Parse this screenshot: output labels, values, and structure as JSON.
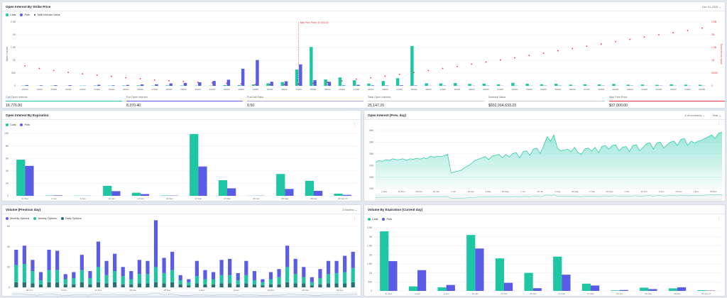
{
  "colors": {
    "calls": "#1fc6a3",
    "puts": "#5b5ce6",
    "total": "#e8353b",
    "monthly": "#5b5ce6",
    "weekly": "#1fc6a3",
    "daily": "#2b6f73",
    "area": "#1fc6a3"
  },
  "strike": {
    "title": "Open Interest By Strike Price",
    "date": "Dec 31 2025",
    "legend": {
      "calls": "Calls",
      "puts": "Puts",
      "total": "Total Intrinsic Value"
    },
    "y_left_label": "Open Interest",
    "y_right_label": "Total Intrinsic Value",
    "max_pain_label": "Max Pain Price: 37,000.00",
    "stats": [
      {
        "label": "Call Open Interest",
        "value": "16,776.80",
        "color": "#1fc6a3"
      },
      {
        "label": "Put Open Interest",
        "value": "8,370.40",
        "color": "#5b5ce6"
      },
      {
        "label": "Put/Call Ratio",
        "value": "0.50",
        "color": "#a7a8e8"
      },
      {
        "label": "Total Open Interest",
        "value": "25,147.20",
        "color": "#c7ccd6"
      },
      {
        "label": "Notional Value",
        "value": "$932,914,633.23",
        "color": "#c7ccd6"
      },
      {
        "label": "Max Pain Price",
        "value": "$37,000.00",
        "color": "#e8353b"
      }
    ]
  },
  "expiration": {
    "title": "Open Interest By Expiration",
    "legend": {
      "calls": "Calls",
      "puts": "Puts"
    }
  },
  "prevday": {
    "title": "Open Interest (Prev. day)",
    "range": "# of contracts",
    "period": "Year"
  },
  "volume_prev": {
    "title": "Volume (Previous day)",
    "range": "3 Months",
    "legend": {
      "monthly": "Monthly Options",
      "weekly": "Weekly Options",
      "daily": "Daily Options"
    }
  },
  "volume_exp": {
    "title": "Volume By Expiration (Current day)",
    "legend": {
      "calls": "Calls",
      "puts": "Puts"
    }
  },
  "chart_data": [
    {
      "type": "bar",
      "title": "Open Interest By Strike Price",
      "ylabel": "Open Interest",
      "yticks": [
        "2.5K",
        "2K",
        "1.5K",
        "1K",
        "500",
        "0"
      ],
      "ylim": [
        0,
        2500
      ],
      "y2label": "Total Intrinsic Value",
      "y2ticks": [
        "2.5B",
        "2B",
        "1.5B",
        "1B",
        "500M",
        "0"
      ],
      "y2lim": [
        0,
        2.5
      ],
      "categories": [
        "18000",
        "19000",
        "20000",
        "21000",
        "22000",
        "23000",
        "24000",
        "25000",
        "26000",
        "27000",
        "28000",
        "29000",
        "30000",
        "31000",
        "32000",
        "33000",
        "34000",
        "35000",
        "36000",
        "37000",
        "38000",
        "39000",
        "40000",
        "41000",
        "42000",
        "43000",
        "44000",
        "45000",
        "46000",
        "47000",
        "48000",
        "49000",
        "50000",
        "51000",
        "52000",
        "53000",
        "54000",
        "55000",
        "56000",
        "57000",
        "58000",
        "59000",
        "60000",
        "61000",
        "62000",
        "63000",
        "64000",
        "65000"
      ],
      "series": [
        {
          "name": "Calls",
          "values": [
            10,
            5,
            10,
            5,
            10,
            15,
            10,
            15,
            20,
            10,
            20,
            15,
            10,
            10,
            30,
            30,
            55,
            100,
            150,
            640,
            1520,
            250,
            330,
            220,
            90,
            190,
            300,
            1560,
            100,
            95,
            110,
            75,
            85,
            60,
            120,
            80,
            60,
            80,
            45,
            60,
            55,
            75,
            45,
            50,
            40,
            60,
            45,
            40
          ]
        },
        {
          "name": "Puts",
          "values": [
            30,
            20,
            25,
            25,
            10,
            40,
            20,
            35,
            55,
            60,
            95,
            115,
            140,
            190,
            240,
            670,
            1010,
            160,
            180,
            840,
            220,
            160,
            20,
            40,
            20,
            15,
            25,
            15,
            5,
            10,
            5,
            5,
            10,
            5,
            5,
            5,
            10,
            10,
            5,
            5,
            10,
            5,
            10,
            5,
            10,
            5,
            5,
            5
          ]
        },
        {
          "name": "Total Intrinsic Value",
          "values": [
            0.78,
            0.68,
            0.6,
            0.53,
            0.47,
            0.42,
            0.37,
            0.32,
            0.28,
            0.23,
            0.2,
            0.17,
            0.14,
            0.12,
            0.1,
            0.08,
            0.06,
            0.05,
            0.05,
            0.07,
            0.1,
            0.14,
            0.19,
            0.26,
            0.32,
            0.38,
            0.45,
            0.52,
            0.6,
            0.68,
            0.76,
            0.85,
            0.93,
            1.01,
            1.1,
            1.19,
            1.28,
            1.37,
            1.46,
            1.55,
            1.64,
            1.73,
            1.82,
            1.91,
            2.0,
            2.08,
            2.17,
            2.26
          ]
        }
      ]
    },
    {
      "type": "bar",
      "title": "Open Interest By Expiration",
      "yticks": [
        "10K",
        "8K",
        "6K",
        "4K",
        "2K",
        "0"
      ],
      "ylim": [
        0,
        10000
      ],
      "categories": [
        "31 Dec",
        "2 Jan",
        "9 Jan",
        "16 Jan",
        "23 Jan",
        "30 Jan",
        "27 Feb",
        "27 Mar",
        "26 Jun",
        "25 Sep",
        "25 Dec",
        "26 Jun 27"
      ],
      "series": [
        {
          "name": "Calls",
          "values": [
            5800,
            50,
            30,
            1600,
            500,
            60,
            9900,
            2500,
            20,
            3500,
            2400,
            350
          ]
        },
        {
          "name": "Puts",
          "values": [
            4800,
            80,
            20,
            750,
            280,
            50,
            4700,
            1200,
            30,
            1100,
            800,
            150
          ]
        }
      ]
    },
    {
      "type": "area",
      "title": "Open Interest (Prev. day)",
      "yticks": [
        "35K",
        "30K",
        "25K",
        "20K",
        "15K",
        "10K"
      ],
      "ylim": [
        5000,
        38000
      ],
      "xticks": [
        "1 Nov",
        "12 Nov",
        "28 Nov",
        "15 Jan",
        "1 Apr",
        "15 Apr",
        "4 May",
        "19 May",
        "1 Jul",
        "15 Jul",
        "1 Aug",
        "15 Aug",
        "1 Sep",
        "15 Sep",
        "1 Oct",
        "15 Oct",
        "1 Nov",
        "15 Nov",
        "1 Dec",
        "15 Dec"
      ],
      "values": [
        20,
        21,
        20.5,
        21.5,
        21,
        22,
        21.5,
        21.6,
        22,
        21,
        22,
        21.7,
        22.3,
        21.8,
        22.5,
        22,
        23.5,
        22.8,
        23.5,
        23.2,
        23.8,
        24.5,
        14,
        14.5,
        15,
        15.5,
        17,
        18,
        19.5,
        21,
        21.8,
        22.5,
        23.2,
        21.5,
        23.5,
        24,
        24.5,
        22.5,
        24.5,
        23,
        25,
        25.5,
        22.5,
        26,
        26.5,
        24,
        27.5,
        28,
        25,
        29.5,
        34.5,
        32,
        35.5,
        28,
        26.5,
        27,
        27.5,
        26,
        28.5,
        25.5,
        24.5,
        27.5,
        28,
        26.5,
        28.5,
        25.5,
        29,
        29.5,
        27.5,
        29.5,
        30,
        26.5,
        28.5,
        29,
        26,
        29.5,
        30,
        26.5,
        28.5,
        30.5,
        31,
        27.5,
        31,
        31.5,
        28,
        30,
        31.5,
        32,
        29.5,
        33,
        33.5,
        29.5,
        32,
        31,
        32,
        32.5,
        33.5,
        34.5,
        35.5,
        33.5,
        36.5,
        37
      ]
    },
    {
      "type": "bar",
      "title": "Volume (Previous day)",
      "yticks": [
        "6K",
        "4K",
        "2K",
        "0"
      ],
      "ylim": [
        0,
        6000
      ],
      "xticks": [
        "28 Oct",
        "4 Nov",
        "11 Nov",
        "18 Nov",
        "25 Nov",
        "2 Dec",
        "9 Dec",
        "16 Dec",
        "23 Dec",
        "30 Dec"
      ],
      "series": [
        {
          "name": "Monthly Options",
          "values": [
            1500,
            1800,
            1100,
            800,
            2000,
            1900,
            500,
            600,
            1500,
            700,
            2500,
            1400,
            1700,
            900,
            800,
            1400,
            1300,
            4600,
            1500,
            1800,
            500,
            300,
            1500,
            900,
            700,
            1500,
            1600,
            700,
            1400,
            900,
            300,
            700,
            800,
            2100,
            1500,
            1000,
            500,
            900,
            1300,
            1200,
            1600,
            1600
          ]
        },
        {
          "name": "Weekly Options",
          "values": [
            1700,
            1800,
            1200,
            400,
            1200,
            1200,
            500,
            600,
            1200,
            600,
            1500,
            800,
            1100,
            800,
            500,
            900,
            900,
            1500,
            1000,
            1200,
            400,
            300,
            700,
            500,
            500,
            800,
            800,
            400,
            800,
            400,
            300,
            500,
            700,
            1500,
            900,
            600,
            300,
            600,
            900,
            1000,
            1100,
            1400
          ]
        },
        {
          "name": "Daily Options",
          "values": [
            500,
            500,
            400,
            300,
            500,
            500,
            300,
            300,
            500,
            300,
            500,
            400,
            500,
            300,
            300,
            400,
            400,
            500,
            400,
            500,
            300,
            200,
            400,
            300,
            300,
            400,
            400,
            300,
            400,
            300,
            200,
            300,
            300,
            500,
            400,
            400,
            200,
            300,
            400,
            400,
            400,
            500
          ]
        }
      ]
    },
    {
      "type": "bar",
      "title": "Volume By Expiration (Current day)",
      "yticks": [
        "3.5K",
        "3K",
        "2.5K",
        "2K",
        "1.5K",
        "1K",
        "500",
        "0"
      ],
      "ylim": [
        0,
        3500
      ],
      "categories": [
        "31 Dec",
        "2 Jan",
        "9 Jan",
        "16 Jan",
        "23 Jan",
        "30 Jan",
        "27 Feb",
        "27 Mar",
        "26 Jun",
        "25 Sep",
        "25 Dec",
        "26 Jun 27"
      ],
      "series": [
        {
          "name": "Calls",
          "values": [
            3300,
            250,
            200,
            3100,
            1800,
            1000,
            1900,
            400,
            30,
            180,
            140,
            40
          ]
        },
        {
          "name": "Puts",
          "values": [
            1650,
            1150,
            330,
            2350,
            450,
            150,
            900,
            300,
            50,
            100,
            200,
            20
          ]
        }
      ]
    }
  ]
}
